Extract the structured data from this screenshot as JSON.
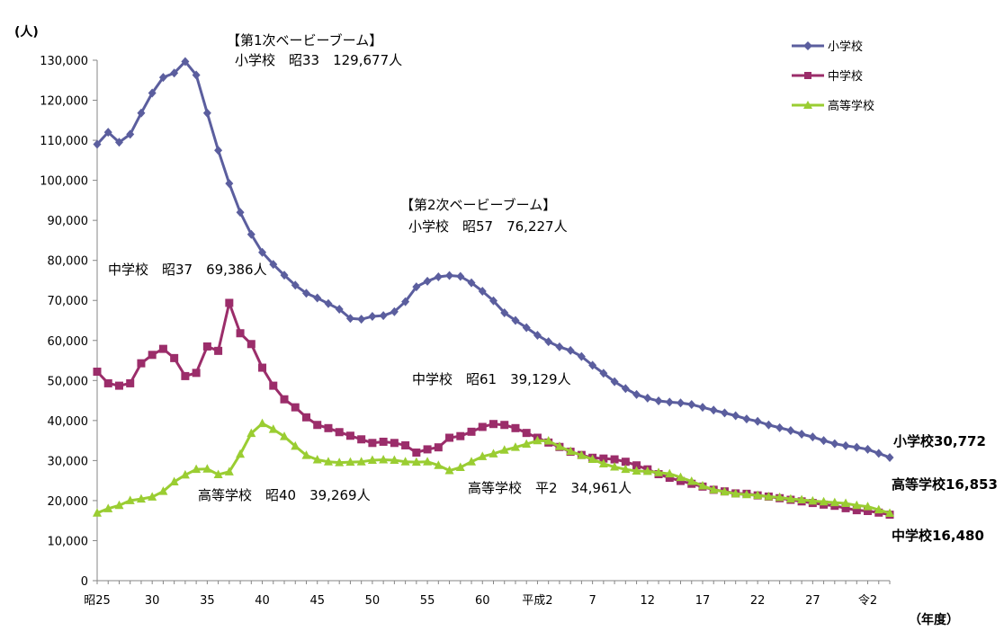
{
  "chart_data": {
    "type": "line",
    "y_unit_label": "(人)",
    "x_unit_label": "（年度）",
    "ylim": [
      0,
      130000
    ],
    "y_ticks": [
      0,
      10000,
      20000,
      30000,
      40000,
      50000,
      60000,
      70000,
      80000,
      90000,
      100000,
      110000,
      120000,
      130000
    ],
    "y_tick_labels": [
      "0",
      "10,000",
      "20,000",
      "30,000",
      "40,000",
      "50,000",
      "60,000",
      "70,000",
      "80,000",
      "90,000",
      "100,000",
      "110,000",
      "120,000",
      "130,000"
    ],
    "x_tick_labels": [
      "昭25",
      "30",
      "35",
      "40",
      "45",
      "50",
      "55",
      "60",
      "平成2",
      "7",
      "12",
      "17",
      "22",
      "27",
      "令2"
    ],
    "x_tick_index": [
      0,
      5,
      10,
      15,
      20,
      25,
      30,
      35,
      40,
      45,
      50,
      55,
      60,
      65,
      70
    ],
    "grid": false,
    "legend_position": "top-right",
    "series": [
      {
        "name": "小学校",
        "color": "#5B5E9E",
        "marker": "diamond",
        "values": [
          109000,
          112000,
          109500,
          111500,
          116800,
          121800,
          125700,
          126800,
          129677,
          126300,
          116800,
          107500,
          99200,
          92000,
          86500,
          82000,
          79000,
          76300,
          73800,
          71800,
          70600,
          69200,
          67800,
          65500,
          65300,
          66000,
          66200,
          67200,
          69700,
          73400,
          74800,
          75900,
          76227,
          76000,
          74400,
          72300,
          69900,
          66900,
          65000,
          63200,
          61300,
          59700,
          58400,
          57500,
          56000,
          53800,
          51800,
          49700,
          48000,
          46500,
          45600,
          44900,
          44600,
          44400,
          44000,
          43300,
          42600,
          41900,
          41200,
          40400,
          39800,
          38900,
          38200,
          37500,
          36600,
          35900,
          35000,
          34200,
          33700,
          33300,
          32800,
          31800,
          30772
        ]
      },
      {
        "name": "中学校",
        "color": "#9B2D6A",
        "marker": "square",
        "values": [
          52200,
          49300,
          48700,
          49300,
          54300,
          56400,
          57900,
          55600,
          51100,
          51900,
          58500,
          57400,
          69386,
          61800,
          59100,
          53200,
          48700,
          45300,
          43300,
          40800,
          38900,
          38100,
          37100,
          36200,
          35300,
          34400,
          34700,
          34400,
          33800,
          32000,
          32800,
          33300,
          35700,
          36100,
          37200,
          38400,
          39129,
          38900,
          38100,
          36900,
          35700,
          34500,
          33400,
          32200,
          31400,
          30700,
          30500,
          30300,
          29700,
          28800,
          27800,
          26600,
          25700,
          24900,
          24200,
          23500,
          22700,
          22300,
          21800,
          21700,
          21300,
          21000,
          20600,
          20200,
          19800,
          19400,
          19000,
          18700,
          18100,
          17600,
          17400,
          17000,
          16480
        ]
      },
      {
        "name": "高等学校",
        "color": "#9ACD32",
        "marker": "triangle",
        "values": [
          16900,
          18000,
          18800,
          20000,
          20400,
          20900,
          22300,
          24700,
          26400,
          27800,
          27900,
          26500,
          27200,
          31600,
          36800,
          39269,
          37800,
          36000,
          33600,
          31300,
          30200,
          29700,
          29500,
          29600,
          29700,
          30100,
          30200,
          30100,
          29700,
          29600,
          29700,
          28800,
          27500,
          28300,
          29700,
          31000,
          31700,
          32600,
          33300,
          34100,
          34961,
          34900,
          33500,
          32300,
          31300,
          30300,
          29200,
          28400,
          27800,
          27400,
          27300,
          27000,
          26700,
          25800,
          24800,
          23700,
          22700,
          22200,
          21700,
          21500,
          21300,
          21000,
          20800,
          20400,
          20200,
          19900,
          19700,
          19500,
          19300,
          18800,
          18500,
          17700,
          16853
        ]
      }
    ],
    "annotations": [
      {
        "text": "【第1次ベービーブーム】",
        "series_index": 0
      },
      {
        "text": "小学校　昭33　129,677人",
        "series_index": 0
      },
      {
        "text": "【第2次ベービーブーム】",
        "series_index": 0
      },
      {
        "text": "小学校　昭57　76,227人",
        "series_index": 0
      },
      {
        "text": "中学校　昭37　69,386人",
        "series_index": 1
      },
      {
        "text": "中学校　昭61　39,129人",
        "series_index": 1
      },
      {
        "text": "高等学校　昭40　39,269人",
        "series_index": 2
      },
      {
        "text": "高等学校　平2　34,961人",
        "series_index": 2
      }
    ],
    "end_labels": [
      "小学校30,772",
      "高等学校16,853",
      "中学校16,480"
    ]
  }
}
